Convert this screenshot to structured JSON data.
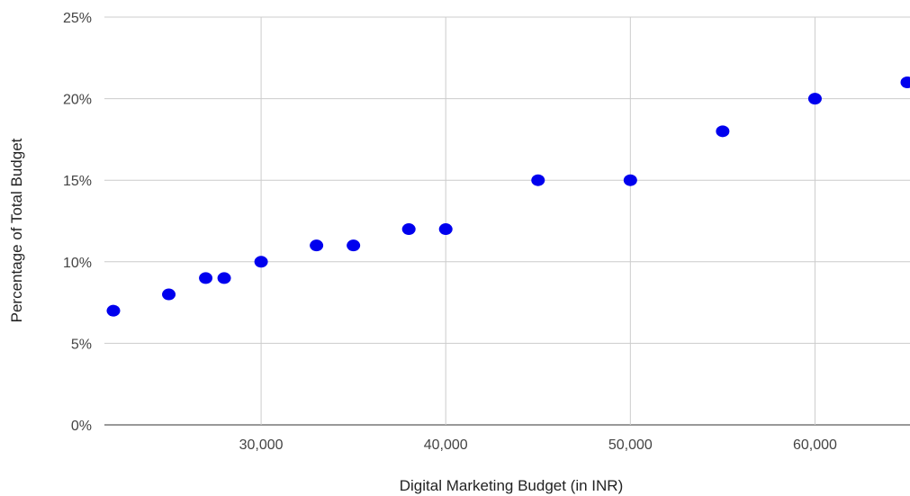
{
  "chart_data": {
    "type": "scatter",
    "title": "",
    "xlabel": "Digital Marketing Budget (in INR)",
    "ylabel": "Percentage of Total Budget",
    "xlim": [
      22000,
      65000
    ],
    "ylim": [
      0,
      25
    ],
    "x_ticks": [
      30000,
      40000,
      50000,
      60000
    ],
    "x_tick_labels": [
      "30,000",
      "40,000",
      "50,000",
      "60,000"
    ],
    "y_ticks": [
      0,
      5,
      10,
      15,
      20,
      25
    ],
    "y_tick_labels": [
      "0%",
      "5%",
      "10%",
      "15%",
      "20%",
      "25%"
    ],
    "grid": true,
    "legend": "none",
    "point_color": "#0000ee",
    "series": [
      {
        "points": [
          {
            "x": 22000,
            "y": 7
          },
          {
            "x": 25000,
            "y": 8
          },
          {
            "x": 27000,
            "y": 9
          },
          {
            "x": 28000,
            "y": 9
          },
          {
            "x": 30000,
            "y": 10
          },
          {
            "x": 33000,
            "y": 11
          },
          {
            "x": 35000,
            "y": 11
          },
          {
            "x": 38000,
            "y": 12
          },
          {
            "x": 40000,
            "y": 12
          },
          {
            "x": 45000,
            "y": 15
          },
          {
            "x": 50000,
            "y": 15
          },
          {
            "x": 55000,
            "y": 18
          },
          {
            "x": 60000,
            "y": 20
          },
          {
            "x": 65000,
            "y": 21
          }
        ]
      }
    ]
  }
}
